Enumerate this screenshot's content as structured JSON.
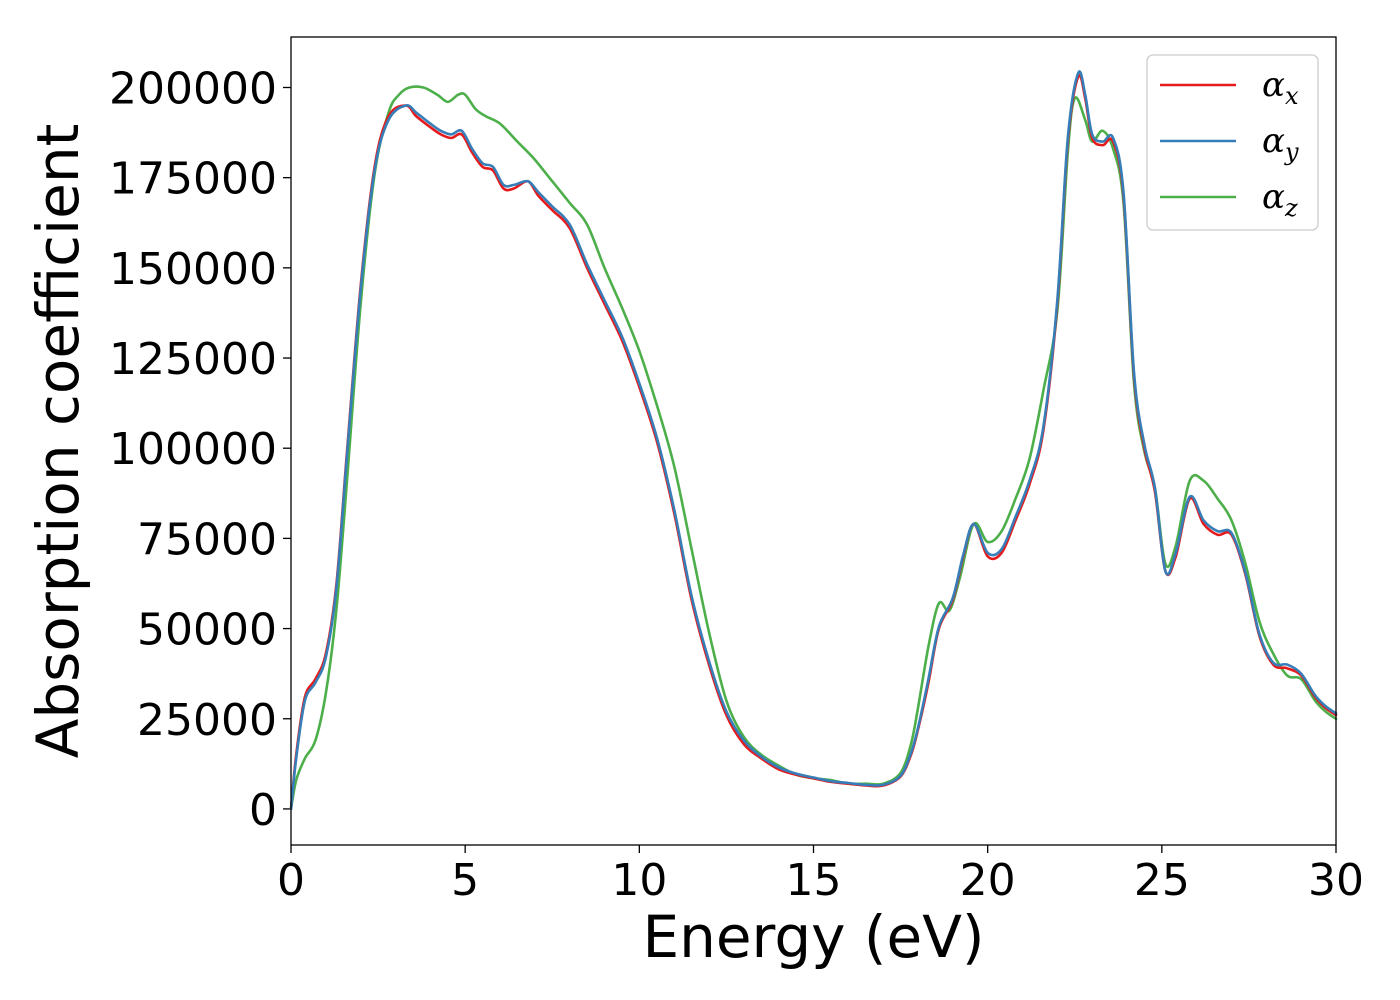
{
  "chart_data": {
    "type": "line",
    "title": "",
    "xlabel": "Energy (eV)",
    "ylabel": "Absorption coefficient",
    "xlim": [
      0,
      30
    ],
    "ylim": [
      -10000,
      214000
    ],
    "xticks": [
      0,
      5,
      10,
      15,
      20,
      25,
      30
    ],
    "yticks": [
      0,
      25000,
      50000,
      75000,
      100000,
      125000,
      150000,
      175000,
      200000
    ],
    "grid": false,
    "legend_position": "top-right",
    "series": [
      {
        "name": "αx",
        "legend_base": "α",
        "legend_sub": "x",
        "color": "#e41a1c",
        "x": [
          0,
          0.15,
          0.4,
          0.7,
          1.0,
          1.3,
          1.6,
          2.0,
          2.4,
          2.8,
          3.3,
          3.6,
          4.0,
          4.3,
          4.6,
          4.9,
          5.2,
          5.5,
          5.8,
          6.1,
          6.4,
          6.8,
          7.1,
          7.5,
          8.0,
          8.5,
          9.0,
          9.5,
          10.0,
          10.5,
          11.0,
          11.5,
          12.0,
          12.5,
          13.0,
          13.5,
          14.0,
          14.5,
          15.0,
          15.5,
          16.0,
          16.5,
          17.0,
          17.5,
          17.8,
          18.0,
          18.3,
          18.6,
          19.0,
          19.3,
          19.6,
          20.0,
          20.4,
          20.8,
          21.2,
          21.6,
          22.0,
          22.3,
          22.6,
          22.8,
          23.0,
          23.3,
          23.6,
          23.9,
          24.2,
          24.5,
          24.8,
          25.1,
          25.4,
          25.8,
          26.2,
          26.6,
          27.0,
          27.4,
          27.8,
          28.2,
          28.6,
          29.0,
          29.4,
          29.7,
          30.0
        ],
        "y": [
          0,
          15000,
          31000,
          36000,
          43000,
          62000,
          98000,
          145000,
          178000,
          192000,
          195000,
          192000,
          189000,
          187000,
          186000,
          187000,
          182000,
          178000,
          177000,
          172000,
          172000,
          174000,
          170000,
          166000,
          161000,
          150000,
          140000,
          130000,
          117000,
          102000,
          82000,
          58000,
          40000,
          26000,
          18000,
          14000,
          11000,
          9500,
          8500,
          7500,
          7000,
          6500,
          6500,
          9000,
          15000,
          22000,
          35000,
          50000,
          58000,
          70000,
          79000,
          70000,
          71000,
          80000,
          90000,
          105000,
          140000,
          185000,
          203000,
          197000,
          186000,
          184000,
          185000,
          170000,
          120000,
          100000,
          88000,
          66000,
          70000,
          86000,
          79000,
          76000,
          76000,
          65000,
          48000,
          40000,
          39000,
          37000,
          31000,
          28000,
          26000
        ]
      },
      {
        "name": "αy",
        "legend_base": "α",
        "legend_sub": "y",
        "color": "#377eb8",
        "x": [
          0,
          0.15,
          0.4,
          0.7,
          1.0,
          1.3,
          1.6,
          2.0,
          2.4,
          2.8,
          3.3,
          3.6,
          4.0,
          4.3,
          4.6,
          4.9,
          5.2,
          5.5,
          5.8,
          6.1,
          6.4,
          6.8,
          7.1,
          7.5,
          8.0,
          8.5,
          9.0,
          9.5,
          10.0,
          10.5,
          11.0,
          11.5,
          12.0,
          12.5,
          13.0,
          13.5,
          14.0,
          14.5,
          15.0,
          15.5,
          16.0,
          16.5,
          17.0,
          17.5,
          17.8,
          18.0,
          18.3,
          18.6,
          19.0,
          19.3,
          19.6,
          20.0,
          20.4,
          20.8,
          21.2,
          21.6,
          22.0,
          22.3,
          22.6,
          22.8,
          23.0,
          23.3,
          23.6,
          23.9,
          24.2,
          24.5,
          24.8,
          25.1,
          25.4,
          25.8,
          26.2,
          26.6,
          27.0,
          27.4,
          27.8,
          28.2,
          28.6,
          29.0,
          29.4,
          29.7,
          30.0
        ],
        "y": [
          0,
          14000,
          30000,
          35000,
          42000,
          61000,
          97000,
          144000,
          177000,
          191000,
          195000,
          193000,
          190000,
          188000,
          187000,
          188000,
          183000,
          179000,
          178000,
          173000,
          173000,
          174000,
          171000,
          167000,
          162000,
          151000,
          141000,
          131000,
          118000,
          103000,
          83000,
          59000,
          41000,
          27000,
          19000,
          14500,
          11500,
          9800,
          8700,
          7700,
          7200,
          6700,
          6700,
          9200,
          15500,
          22500,
          36000,
          50500,
          58500,
          70500,
          79000,
          71000,
          72000,
          81000,
          91000,
          106000,
          141000,
          186000,
          204000,
          198000,
          187000,
          185000,
          186000,
          171000,
          121000,
          101000,
          89000,
          66000,
          71000,
          86500,
          80000,
          77000,
          76500,
          65500,
          48500,
          40500,
          40000,
          37500,
          31500,
          28500,
          26500
        ]
      },
      {
        "name": "αz",
        "legend_base": "α",
        "legend_sub": "z",
        "color": "#4daf4a",
        "x": [
          0,
          0.15,
          0.4,
          0.7,
          1.0,
          1.3,
          1.6,
          2.0,
          2.4,
          2.8,
          3.1,
          3.4,
          3.8,
          4.2,
          4.5,
          4.8,
          5.0,
          5.3,
          5.6,
          6.0,
          6.5,
          7.0,
          7.5,
          8.0,
          8.5,
          9.0,
          9.5,
          10.0,
          10.5,
          11.0,
          11.5,
          12.0,
          12.5,
          13.0,
          13.5,
          14.0,
          14.5,
          15.0,
          15.5,
          16.0,
          16.5,
          17.0,
          17.5,
          17.8,
          18.0,
          18.3,
          18.6,
          18.9,
          19.2,
          19.6,
          20.0,
          20.4,
          20.8,
          21.2,
          21.6,
          22.0,
          22.3,
          22.5,
          22.8,
          23.0,
          23.3,
          23.6,
          23.9,
          24.2,
          24.5,
          24.8,
          25.1,
          25.4,
          25.8,
          26.2,
          26.6,
          27.0,
          27.4,
          27.8,
          28.2,
          28.6,
          29.0,
          29.4,
          29.7,
          30.0
        ],
        "y": [
          0,
          8000,
          14000,
          19000,
          32000,
          55000,
          90000,
          140000,
          176000,
          193000,
          198000,
          200000,
          200000,
          198000,
          196000,
          198000,
          198000,
          194000,
          192000,
          190000,
          185000,
          180000,
          174000,
          168000,
          162000,
          150000,
          139000,
          127000,
          112000,
          95000,
          72000,
          49000,
          30000,
          20000,
          15000,
          12000,
          9500,
          8500,
          8000,
          7000,
          7000,
          7000,
          10000,
          18000,
          28000,
          45000,
          57000,
          55000,
          64000,
          79000,
          74000,
          77000,
          86000,
          97000,
          116000,
          138000,
          182000,
          197000,
          191000,
          185000,
          188000,
          183000,
          168000,
          118000,
          99000,
          89000,
          68000,
          73000,
          91000,
          91000,
          86000,
          80000,
          68000,
          52000,
          43000,
          37000,
          36000,
          30000,
          27000,
          25000
        ]
      }
    ]
  }
}
